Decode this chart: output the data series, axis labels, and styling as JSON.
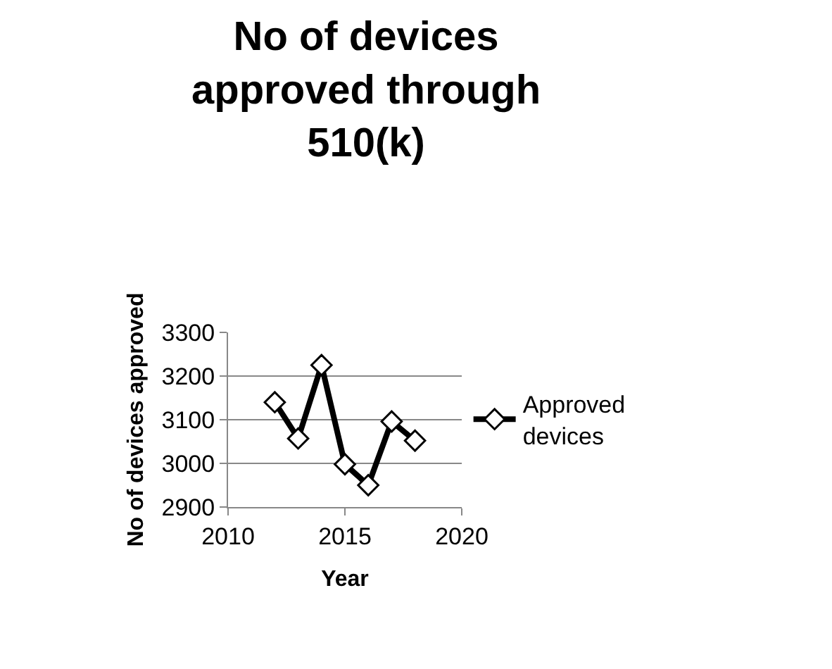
{
  "chart_data": {
    "type": "line",
    "title": "No of devices approved through 510(k)",
    "xlabel": "Year",
    "ylabel": "No of devices approved",
    "x": [
      2012,
      2013,
      2014,
      2015,
      2016,
      2017,
      2018
    ],
    "series": [
      {
        "name": "Approved devices",
        "color": "#000000",
        "values": [
          3140,
          3057,
          3225,
          2998,
          2950,
          3096,
          3052
        ]
      }
    ],
    "xlim": [
      2010,
      2020
    ],
    "xticks": [
      2010,
      2015,
      2020
    ],
    "ylim": [
      2900,
      3300
    ],
    "yticks": [
      2900,
      3000,
      3100,
      3200,
      3300
    ],
    "grid": "y",
    "legend": "right",
    "marker": "diamond",
    "line_style": "solid"
  }
}
